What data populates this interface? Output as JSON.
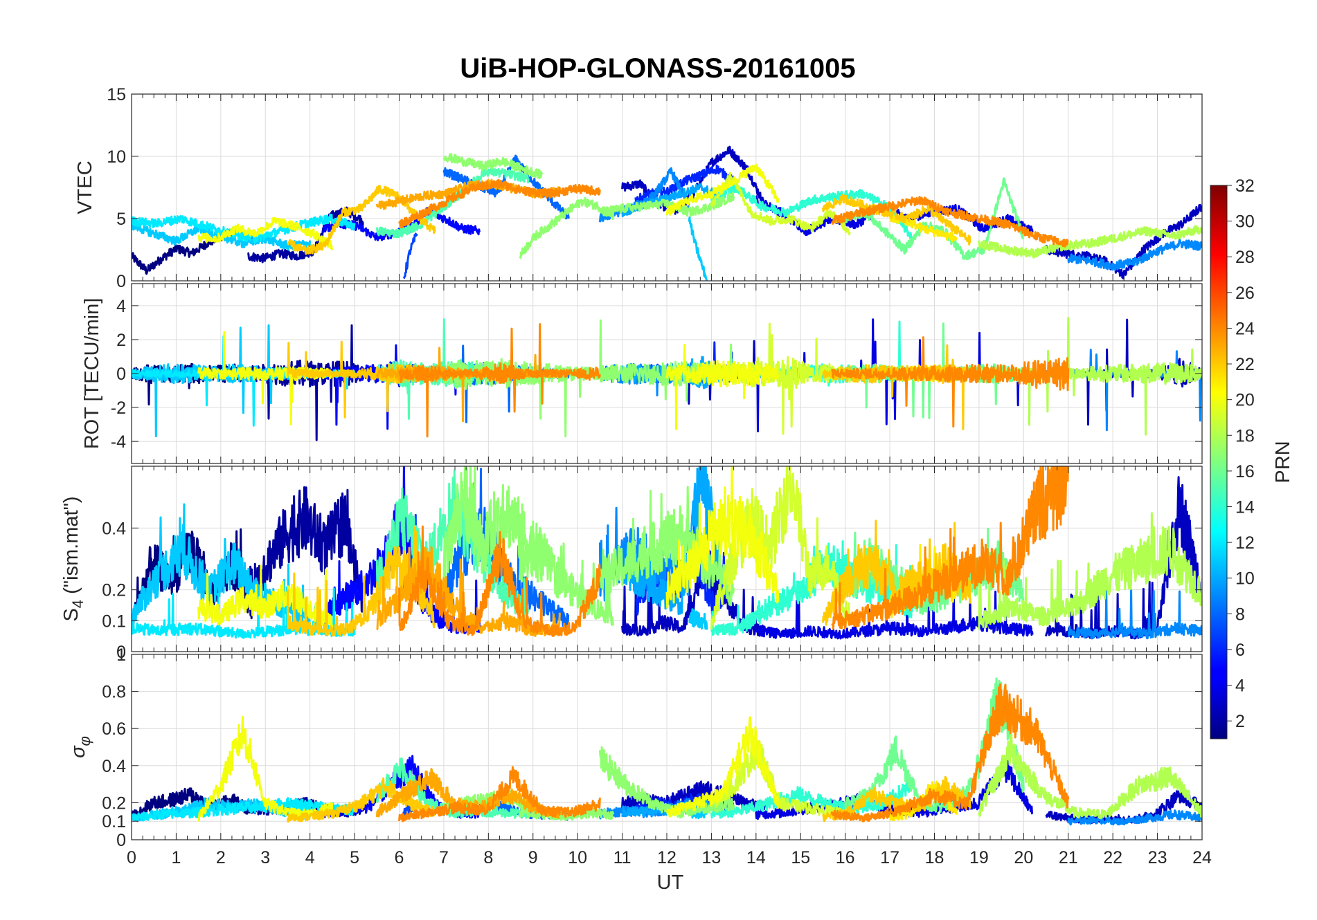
{
  "chart_data": {
    "type": "line",
    "title": "UiB-HOP-GLONASS-20161005",
    "xlabel": "UT",
    "xlim": [
      0,
      24
    ],
    "x_ticks": [
      "0",
      "1",
      "2",
      "3",
      "4",
      "5",
      "6",
      "7",
      "8",
      "9",
      "10",
      "11",
      "12",
      "13",
      "14",
      "15",
      "16",
      "17",
      "18",
      "19",
      "20",
      "21",
      "22",
      "23",
      "24"
    ],
    "grid": true,
    "colormap": "jet",
    "colorbar": {
      "label": "PRN",
      "range": [
        1,
        32
      ],
      "ticks": [
        "2",
        "4",
        "6",
        "8",
        "10",
        "12",
        "14",
        "16",
        "18",
        "20",
        "22",
        "24",
        "26",
        "28",
        "30",
        "32"
      ],
      "placement": "right"
    },
    "panels": [
      {
        "id": "vtec",
        "ylabel": "VTEC",
        "ylim": [
          0,
          15
        ],
        "y_ticks": [
          {
            "v": 0,
            "label": "0"
          },
          {
            "v": 5,
            "label": "5"
          },
          {
            "v": 10,
            "label": "10"
          },
          {
            "v": 15,
            "label": "15"
          }
        ]
      },
      {
        "id": "rot",
        "ylabel": "ROT [TECU/min]",
        "ylim": [
          -5.3,
          5.3
        ],
        "y_ticks": [
          {
            "v": -4,
            "label": "-4"
          },
          {
            "v": -2,
            "label": "-2"
          },
          {
            "v": 0,
            "label": "0"
          },
          {
            "v": 2,
            "label": "2"
          },
          {
            "v": 4,
            "label": "4"
          }
        ]
      },
      {
        "id": "s4",
        "ylabel_main": "S",
        "ylabel_sub": "4",
        "ylabel_rest": " (\"ism.mat\")",
        "ylim": [
          0,
          0.6
        ],
        "y_ticks": [
          {
            "v": 0,
            "label": "0"
          },
          {
            "v": 0.1,
            "label": "0.1"
          },
          {
            "v": 0.2,
            "label": "0.2"
          },
          {
            "v": 0.4,
            "label": "0.4"
          }
        ]
      },
      {
        "id": "sigma",
        "ylabel_main": "σ",
        "ylabel_sub": "φ",
        "ylim": [
          0,
          1
        ],
        "y_ticks": [
          {
            "v": 0,
            "label": "0"
          },
          {
            "v": 0.1,
            "label": "0.1"
          },
          {
            "v": 0.2,
            "label": "0.2"
          },
          {
            "v": 0.4,
            "label": "0.4"
          },
          {
            "v": 0.6,
            "label": "0.6"
          },
          {
            "v": 0.8,
            "label": "0.8"
          },
          {
            "v": 1,
            "label": "1"
          }
        ]
      }
    ],
    "series": [
      {
        "prn": 1,
        "start": 0.0,
        "end": 2.7,
        "vtec": [
          2.0,
          0.8,
          1.8,
          2.6,
          2.2,
          3.0,
          3.6,
          4.0,
          3.4
        ],
        "s4": [
          0.1,
          0.3,
          0.25,
          0.35,
          0.2,
          0.3,
          0.15
        ],
        "sigma": [
          0.13,
          0.2,
          0.22,
          0.25,
          0.18,
          0.22,
          0.16
        ]
      },
      {
        "prn": 2,
        "start": 2.6,
        "end": 5.2,
        "vtec": [
          2.0,
          1.8,
          2.2,
          2.0,
          2.4,
          5.2,
          5.6,
          4.8
        ],
        "s4": [
          0.2,
          0.3,
          0.4,
          0.45,
          0.35,
          0.45,
          0.15
        ],
        "sigma": [
          0.18,
          0.16,
          0.18,
          0.2,
          0.17,
          0.15,
          0.18
        ]
      },
      {
        "prn": 3,
        "start": 11.0,
        "end": 14.2,
        "vtec": [
          7.5,
          7.8,
          6.2,
          5.6,
          7.0,
          9.5,
          10.5,
          9.0,
          6.0
        ],
        "s4": [
          0.08,
          0.07,
          0.1,
          0.08,
          0.3,
          0.2,
          0.08,
          0.07
        ],
        "sigma": [
          0.2,
          0.22,
          0.2,
          0.24,
          0.28,
          0.25,
          0.2,
          0.18
        ]
      },
      {
        "prn": 3,
        "start": 20.5,
        "end": 24.0,
        "vtec": [
          2.5,
          2.2,
          2.0,
          1.6,
          0.5,
          2.5,
          3.8,
          4.6,
          6.0
        ],
        "s4": [
          0.07,
          0.07,
          0.06,
          0.07,
          0.06,
          0.08,
          0.5,
          0.2
        ],
        "sigma": [
          0.14,
          0.12,
          0.11,
          0.12,
          0.11,
          0.15,
          0.25,
          0.18
        ]
      },
      {
        "prn": 4,
        "start": 14.0,
        "end": 20.2,
        "vtec": [
          6.5,
          5.5,
          4.0,
          5.0,
          4.5,
          6.0,
          5.0,
          5.5,
          5.8,
          4.2,
          5.0,
          4.0
        ],
        "s4": [
          0.07,
          0.06,
          0.07,
          0.06,
          0.07,
          0.08,
          0.07,
          0.08,
          0.1,
          0.08,
          0.07
        ],
        "sigma": [
          0.14,
          0.15,
          0.18,
          0.2,
          0.22,
          0.16,
          0.15,
          0.18,
          0.2,
          0.4,
          0.15
        ]
      },
      {
        "prn": 5,
        "start": 4.3,
        "end": 7.8,
        "vtec": [
          4.2,
          4.6,
          4.4,
          3.5,
          3.8,
          4.2,
          5.6,
          5.0,
          4.2,
          4.0
        ],
        "s4": [
          0.12,
          0.18,
          0.22,
          0.3,
          0.45,
          0.18,
          0.1,
          0.08,
          0.09
        ],
        "sigma": [
          0.15,
          0.16,
          0.18,
          0.3,
          0.4,
          0.2,
          0.14,
          0.15
        ]
      },
      {
        "prn": 6,
        "start": 11.3,
        "end": 13.5,
        "vtec": [
          6.5,
          7.0,
          7.2,
          8.0,
          8.5,
          9.0,
          8.0
        ],
        "s4": [
          0.15,
          0.3,
          0.2,
          0.35,
          0.15,
          0.3
        ],
        "sigma": [
          0.16,
          0.2,
          0.18,
          0.22,
          0.2,
          0.18
        ]
      },
      {
        "prn": 7,
        "start": 6.1,
        "end": 6.4,
        "vtec": [
          0.1,
          2.5,
          3.8
        ],
        "s4": [
          0.2,
          0.35
        ],
        "sigma": [
          0.15,
          0.2
        ]
      },
      {
        "prn": 8,
        "start": 7.0,
        "end": 9.8,
        "vtec": [
          8.8,
          8.2,
          7.6,
          7.0,
          9.8,
          8.0,
          6.5,
          5.0
        ],
        "s4": [
          0.2,
          0.35,
          0.4,
          0.25,
          0.2,
          0.15,
          0.1
        ],
        "sigma": [
          0.16,
          0.18,
          0.2,
          0.15,
          0.14,
          0.13
        ]
      },
      {
        "prn": 9,
        "start": 10.5,
        "end": 12.5,
        "vtec": [
          5.0,
          5.5,
          6.0,
          6.8,
          8.8,
          6.0
        ],
        "s4": [
          0.2,
          0.3,
          0.35,
          0.25,
          0.3,
          0.2
        ],
        "sigma": [
          0.14,
          0.16,
          0.15,
          0.17,
          0.2
        ]
      },
      {
        "prn": 9,
        "start": 21.0,
        "end": 24.0,
        "vtec": [
          1.8,
          1.6,
          1.2,
          1.5,
          2.4,
          3.0,
          2.8
        ],
        "s4": [
          0.07,
          0.06,
          0.07,
          0.06,
          0.08,
          0.07
        ],
        "sigma": [
          0.1,
          0.11,
          0.1,
          0.12,
          0.14,
          0.12
        ]
      },
      {
        "prn": 10,
        "start": 11.0,
        "end": 13.2,
        "vtec": [
          5.5,
          6.0,
          6.5,
          7.0,
          7.5,
          6.8
        ],
        "s4": [
          0.3,
          0.25,
          0.2,
          0.15,
          0.6,
          0.3
        ],
        "sigma": [
          0.15,
          0.16,
          0.17,
          0.18,
          0.2
        ]
      },
      {
        "prn": 11,
        "start": 0.0,
        "end": 4.0,
        "vtec": [
          4.5,
          3.8,
          3.2,
          4.2,
          3.6,
          3.0,
          3.4,
          2.8,
          3.0
        ],
        "s4": [
          0.12,
          0.25,
          0.35,
          0.2,
          0.3,
          0.2,
          0.15,
          0.1
        ],
        "sigma": [
          0.12,
          0.14,
          0.16,
          0.2,
          0.18,
          0.2,
          0.16,
          0.14
        ]
      },
      {
        "prn": 11,
        "start": 12.5,
        "end": 12.9,
        "vtec": [
          5.0,
          3.0,
          1.5,
          0.0
        ],
        "s4": [
          0.12,
          0.1
        ],
        "sigma": [
          0.15,
          0.14
        ]
      },
      {
        "prn": 12,
        "start": 0.0,
        "end": 5.0,
        "vtec": [
          4.8,
          4.6,
          5.0,
          4.4,
          3.8,
          3.4,
          4.0,
          4.6,
          5.0,
          4.4
        ],
        "s4": [
          0.08,
          0.07,
          0.08,
          0.07,
          0.06,
          0.07,
          0.08,
          0.07,
          0.07
        ],
        "sigma": [
          0.12,
          0.14,
          0.15,
          0.17,
          0.18,
          0.2,
          0.18,
          0.16
        ]
      },
      {
        "prn": 14,
        "start": 13.0,
        "end": 17.5,
        "vtec": [
          6.5,
          7.5,
          6.0,
          5.5,
          6.5,
          6.8,
          7.0,
          6.0,
          3.5
        ],
        "s4": [
          0.07,
          0.08,
          0.15,
          0.2,
          0.3,
          0.25,
          0.2,
          0.15
        ],
        "sigma": [
          0.14,
          0.16,
          0.2,
          0.25,
          0.2,
          0.18,
          0.2,
          0.3
        ]
      },
      {
        "prn": 15,
        "start": 5.5,
        "end": 8.9,
        "vtec": [
          4.0,
          3.8,
          4.5,
          5.8,
          7.2,
          8.8,
          8.6,
          8.2
        ],
        "s4": [
          0.25,
          0.45,
          0.3,
          0.5,
          0.35,
          0.2,
          0.15
        ],
        "sigma": [
          0.25,
          0.4,
          0.2,
          0.15,
          0.16,
          0.15,
          0.14
        ]
      },
      {
        "prn": 16,
        "start": 16.0,
        "end": 20.0,
        "vtec": [
          5.0,
          5.5,
          4.0,
          2.5,
          4.5,
          4.0,
          2.0,
          2.5,
          8.0,
          3.5
        ],
        "s4": [
          0.2,
          0.3,
          0.25,
          0.15,
          0.2,
          0.25,
          0.3,
          0.2
        ],
        "sigma": [
          0.2,
          0.25,
          0.5,
          0.2,
          0.18,
          0.3,
          0.8,
          0.3
        ]
      },
      {
        "prn": 17,
        "start": 7.0,
        "end": 9.2,
        "vtec": [
          10.0,
          9.6,
          9.2,
          9.6,
          9.0,
          8.5
        ],
        "s4": [
          0.3,
          0.55,
          0.35,
          0.5,
          0.4,
          0.3
        ],
        "sigma": [
          0.17,
          0.2,
          0.22,
          0.25,
          0.2,
          0.15
        ]
      },
      {
        "prn": 17,
        "start": 8.7,
        "end": 10.8,
        "vtec": [
          2.0,
          3.6,
          4.5,
          5.5,
          6.4,
          6.0,
          5.2
        ],
        "s4": [
          0.3,
          0.35,
          0.25,
          0.2,
          0.15,
          0.12
        ],
        "sigma": [
          0.15,
          0.14,
          0.13,
          0.15,
          0.14
        ]
      },
      {
        "prn": 17,
        "start": 10.5,
        "end": 13.5,
        "vtec": [
          5.5,
          5.8,
          6.0,
          6.2,
          5.5,
          6.0,
          6.8
        ],
        "s4": [
          0.25,
          0.3,
          0.35,
          0.4,
          0.3,
          0.2
        ],
        "sigma": [
          0.45,
          0.3,
          0.2,
          0.15,
          0.18,
          0.2
        ]
      },
      {
        "prn": 18,
        "start": 19.0,
        "end": 24.0,
        "vtec": [
          3.0,
          2.5,
          2.2,
          2.8,
          3.0,
          3.5,
          4.0,
          3.6,
          4.2
        ],
        "s4": [
          0.1,
          0.15,
          0.12,
          0.15,
          0.25,
          0.3,
          0.35,
          0.2
        ],
        "sigma": [
          0.15,
          0.5,
          0.25,
          0.15,
          0.14,
          0.3,
          0.35,
          0.15
        ]
      },
      {
        "prn": 19,
        "start": 13.0,
        "end": 16.1,
        "vtec": [
          6.0,
          8.5,
          5.5,
          4.8,
          5.0,
          4.2,
          5.5,
          4.0
        ],
        "s4": [
          0.1,
          0.3,
          0.45,
          0.35,
          0.6,
          0.25,
          0.3,
          0.1
        ],
        "sigma": [
          0.2,
          0.3,
          0.5,
          0.2,
          0.18,
          0.16,
          0.14
        ]
      },
      {
        "prn": 20,
        "start": 1.5,
        "end": 4.5,
        "vtec": [
          3.5,
          3.4,
          4.2,
          3.8,
          4.8,
          4.4,
          3.8,
          2.8
        ],
        "s4": [
          0.15,
          0.12,
          0.18,
          0.15,
          0.2,
          0.15,
          0.1
        ],
        "sigma": [
          0.12,
          0.3,
          0.6,
          0.2,
          0.15,
          0.14,
          0.18
        ]
      },
      {
        "prn": 20,
        "start": 12.0,
        "end": 14.5,
        "vtec": [
          5.5,
          6.5,
          7.0,
          8.0,
          9.2,
          6.5
        ],
        "s4": [
          0.2,
          0.3,
          0.45,
          0.4,
          0.2
        ],
        "sigma": [
          0.15,
          0.2,
          0.25,
          0.6,
          0.2
        ]
      },
      {
        "prn": 21,
        "start": 17.0,
        "end": 18.5,
        "vtec": [
          5.0,
          4.8,
          4.2,
          3.8,
          3.4
        ],
        "s4": [
          0.15,
          0.2,
          0.25,
          0.2
        ],
        "sigma": [
          0.12,
          0.15,
          0.3,
          0.14
        ]
      },
      {
        "prn": 22,
        "start": 3.5,
        "end": 6.8,
        "vtec": [
          3.0,
          2.4,
          2.8,
          5.5,
          5.8,
          7.4,
          6.8,
          5.2,
          4.0
        ],
        "s4": [
          0.1,
          0.08,
          0.07,
          0.08,
          0.15,
          0.3,
          0.25,
          0.1
        ],
        "sigma": [
          0.12,
          0.13,
          0.15,
          0.2,
          0.3,
          0.2,
          0.15
        ]
      },
      {
        "prn": 22,
        "start": 15.5,
        "end": 18.8,
        "vtec": [
          5.8,
          6.6,
          6.0,
          5.5,
          5.0,
          5.8,
          4.5,
          3.2
        ],
        "s4": [
          0.1,
          0.25,
          0.3,
          0.2,
          0.25,
          0.3,
          0.2
        ],
        "sigma": [
          0.12,
          0.15,
          0.25,
          0.2,
          0.18,
          0.3,
          0.2
        ]
      },
      {
        "prn": 23,
        "start": 5.5,
        "end": 9.6,
        "vtec": [
          6.0,
          6.4,
          6.8,
          7.0,
          7.6,
          7.8,
          7.4,
          7.0,
          7.2
        ],
        "s4": [
          0.1,
          0.2,
          0.3,
          0.15,
          0.08,
          0.1,
          0.07,
          0.08
        ],
        "sigma": [
          0.15,
          0.25,
          0.35,
          0.2,
          0.18,
          0.25,
          0.18,
          0.14
        ]
      },
      {
        "prn": 24,
        "start": 6.0,
        "end": 10.5,
        "vtec": [
          4.5,
          5.5,
          6.5,
          7.5,
          7.8,
          7.2,
          7.0,
          7.4,
          7.2
        ],
        "s4": [
          0.07,
          0.28,
          0.1,
          0.07,
          0.35,
          0.1,
          0.07,
          0.08,
          0.25
        ],
        "sigma": [
          0.12,
          0.15,
          0.18,
          0.16,
          0.35,
          0.16,
          0.15,
          0.2
        ]
      },
      {
        "prn": 24,
        "start": 15.7,
        "end": 21.0,
        "vtec": [
          4.8,
          5.5,
          6.0,
          6.5,
          5.5,
          5.0,
          4.5,
          3.5,
          3.0
        ],
        "s4": [
          0.1,
          0.12,
          0.15,
          0.2,
          0.25,
          0.3,
          0.25,
          0.5,
          0.6
        ],
        "sigma": [
          0.14,
          0.12,
          0.16,
          0.25,
          0.2,
          0.75,
          0.6,
          0.2
        ]
      }
    ]
  }
}
